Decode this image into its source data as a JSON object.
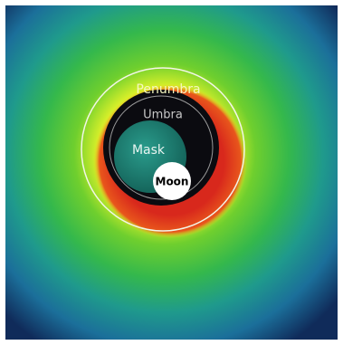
{
  "labels": {
    "penumbra": "Penumbra",
    "umbra": "Umbra",
    "mask": "Mask",
    "moon": "Moon"
  }
}
